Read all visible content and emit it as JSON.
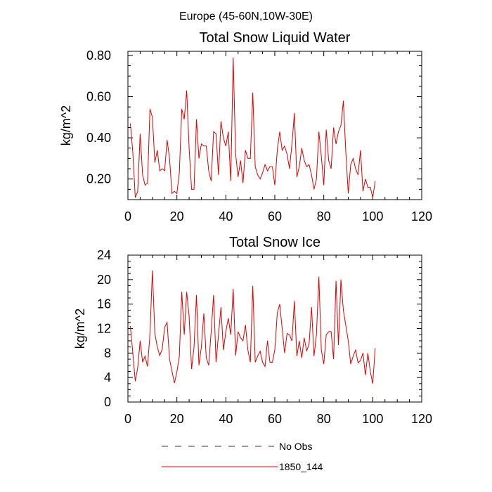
{
  "figure": {
    "title": "Europe (45-60N,10W-30E)",
    "legend": [
      {
        "label": "No Obs",
        "color": "#333333",
        "style": "dashed"
      },
      {
        "label": "1850_144",
        "color": "#e00000",
        "style": "solid"
      }
    ]
  },
  "chart_data": [
    {
      "type": "line",
      "title": "Total Snow Liquid Water",
      "xlabel": "",
      "ylabel": "kg/m^2",
      "xlim": [
        0,
        120
      ],
      "ylim": [
        0.1,
        0.82
      ],
      "xticks": [
        "0",
        "20",
        "40",
        "60",
        "80",
        "100",
        "120"
      ],
      "yticks": [
        "0.20",
        "0.40",
        "0.60",
        "0.80"
      ],
      "ytick_values": [
        0.2,
        0.4,
        0.6,
        0.8
      ],
      "grid": false,
      "series": [
        {
          "name": "1850_144",
          "color": "#e00000",
          "x": [
            1,
            2,
            3,
            4,
            5,
            6,
            7,
            8,
            9,
            10,
            11,
            12,
            13,
            14,
            15,
            16,
            17,
            18,
            19,
            20,
            21,
            22,
            23,
            24,
            25,
            26,
            27,
            28,
            29,
            30,
            31,
            32,
            33,
            34,
            35,
            36,
            37,
            38,
            39,
            40,
            41,
            42,
            43,
            44,
            45,
            46,
            47,
            48,
            49,
            50,
            51,
            52,
            53,
            54,
            55,
            56,
            57,
            58,
            59,
            60,
            61,
            62,
            63,
            64,
            65,
            66,
            67,
            68,
            69,
            70,
            71,
            72,
            73,
            74,
            75,
            76,
            77,
            78,
            79,
            80,
            81,
            82,
            83,
            84,
            85,
            86,
            87,
            88,
            89,
            90,
            91,
            92,
            93,
            94,
            95,
            96,
            97,
            98,
            99,
            100,
            101
          ],
          "values": [
            0.47,
            0.33,
            0.11,
            0.14,
            0.42,
            0.22,
            0.17,
            0.18,
            0.54,
            0.5,
            0.28,
            0.34,
            0.24,
            0.25,
            0.24,
            0.39,
            0.3,
            0.13,
            0.14,
            0.13,
            0.23,
            0.54,
            0.49,
            0.63,
            0.35,
            0.15,
            0.15,
            0.49,
            0.3,
            0.37,
            0.36,
            0.36,
            0.24,
            0.19,
            0.43,
            0.42,
            0.22,
            0.48,
            0.4,
            0.36,
            0.43,
            0.19,
            0.79,
            0.32,
            0.21,
            0.29,
            0.18,
            0.34,
            0.3,
            0.3,
            0.62,
            0.26,
            0.22,
            0.2,
            0.23,
            0.27,
            0.24,
            0.26,
            0.26,
            0.17,
            0.34,
            0.43,
            0.34,
            0.36,
            0.32,
            0.25,
            0.37,
            0.52,
            0.21,
            0.26,
            0.35,
            0.29,
            0.26,
            0.27,
            0.22,
            0.15,
            0.2,
            0.43,
            0.31,
            0.17,
            0.44,
            0.29,
            0.25,
            0.45,
            0.37,
            0.43,
            0.46,
            0.58,
            0.33,
            0.13,
            0.27,
            0.3,
            0.25,
            0.22,
            0.34,
            0.14,
            0.2,
            0.16,
            0.16,
            0.11,
            0.19
          ]
        }
      ]
    },
    {
      "type": "line",
      "title": "Total Snow Ice",
      "xlabel": "",
      "ylabel": "kg/m^2",
      "xlim": [
        0,
        120
      ],
      "ylim": [
        0,
        24
      ],
      "xticks": [
        "0",
        "20",
        "40",
        "60",
        "80",
        "100",
        "120"
      ],
      "yticks": [
        "0",
        "4",
        "8",
        "12",
        "16",
        "20",
        "24"
      ],
      "ytick_values": [
        0,
        4,
        8,
        12,
        16,
        20,
        24
      ],
      "grid": false,
      "series": [
        {
          "name": "1850_144",
          "color": "#e00000",
          "x": [
            1,
            2,
            3,
            4,
            5,
            6,
            7,
            8,
            9,
            10,
            11,
            12,
            13,
            14,
            15,
            16,
            17,
            18,
            19,
            20,
            21,
            22,
            23,
            24,
            25,
            26,
            27,
            28,
            29,
            30,
            31,
            32,
            33,
            34,
            35,
            36,
            37,
            38,
            39,
            40,
            41,
            42,
            43,
            44,
            45,
            46,
            47,
            48,
            49,
            50,
            51,
            52,
            53,
            54,
            55,
            56,
            57,
            58,
            59,
            60,
            61,
            62,
            63,
            64,
            65,
            66,
            67,
            68,
            69,
            70,
            71,
            72,
            73,
            74,
            75,
            76,
            77,
            78,
            79,
            80,
            81,
            82,
            83,
            84,
            85,
            86,
            87,
            88,
            89,
            90,
            91,
            92,
            93,
            94,
            95,
            96,
            97,
            98,
            99,
            100,
            101
          ],
          "values": [
            12.4,
            8.0,
            3.4,
            5.6,
            10.0,
            6.5,
            7.5,
            5.8,
            11.0,
            21.5,
            11.2,
            9.0,
            7.6,
            8.6,
            12.2,
            13.0,
            7.0,
            5.0,
            3.1,
            4.9,
            7.5,
            18.0,
            11.0,
            18.0,
            14.0,
            5.4,
            9.0,
            17.5,
            6.0,
            9.0,
            14.5,
            7.2,
            6.0,
            11.5,
            17.5,
            6.5,
            11.0,
            15.5,
            8.5,
            11.5,
            13.7,
            11.0,
            18.5,
            7.6,
            11.5,
            10.5,
            10.0,
            12.6,
            8.5,
            6.5,
            19.0,
            6.5,
            7.5,
            8.3,
            6.5,
            5.8,
            10.0,
            6.5,
            6.5,
            8.5,
            14.5,
            16.0,
            12.0,
            8.0,
            11.2,
            11.0,
            10.0,
            16.5,
            7.5,
            10.0,
            7.2,
            10.5,
            8.3,
            9.5,
            15.5,
            7.5,
            11.0,
            20.5,
            8.5,
            6.2,
            11.0,
            11.5,
            11.5,
            7.0,
            19.8,
            9.3,
            20.0,
            15.0,
            12.5,
            10.0,
            6.2,
            7.5,
            8.5,
            6.4,
            6.8,
            8.0,
            4.4,
            8.0,
            5.0,
            3.0,
            8.8
          ]
        }
      ]
    }
  ]
}
